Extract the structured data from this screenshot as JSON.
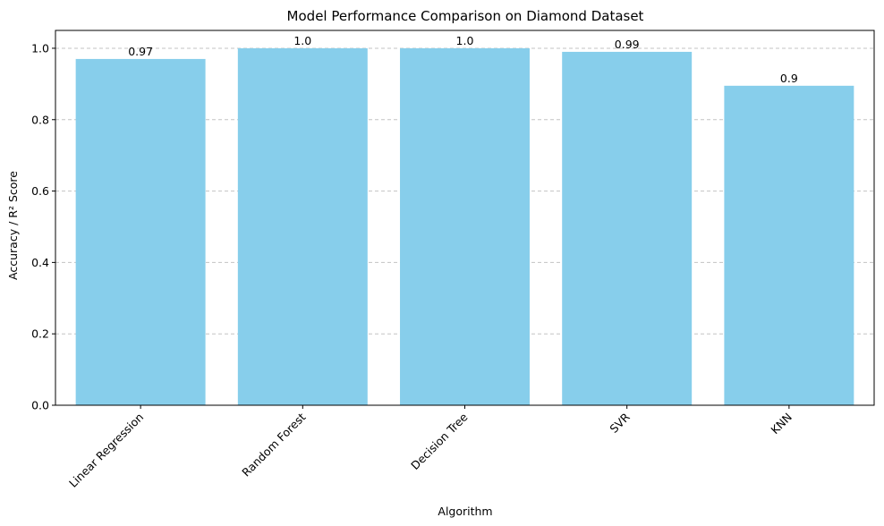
{
  "chart_data": {
    "type": "bar",
    "title": "Model Performance Comparison on Diamond Dataset",
    "xlabel": "Algorithm",
    "ylabel": "Accuracy / R² Score",
    "categories": [
      "Linear Regression",
      "Random Forest",
      "Decision Tree",
      "SVR",
      "KNN"
    ],
    "values": [
      0.97,
      1.0,
      1.0,
      0.99,
      0.895
    ],
    "data_labels": [
      "0.97",
      "1.0",
      "1.0",
      "0.99",
      "0.9"
    ],
    "ylim": [
      0,
      1.05
    ],
    "yticks": [
      0.0,
      0.2,
      0.4,
      0.6,
      0.8,
      1.0
    ],
    "ytick_labels": [
      "0.0",
      "0.2",
      "0.4",
      "0.6",
      "0.8",
      "1.0"
    ],
    "grid": "y-dashed",
    "bar_color": "#87CEEB",
    "xtick_rotation": 45
  }
}
